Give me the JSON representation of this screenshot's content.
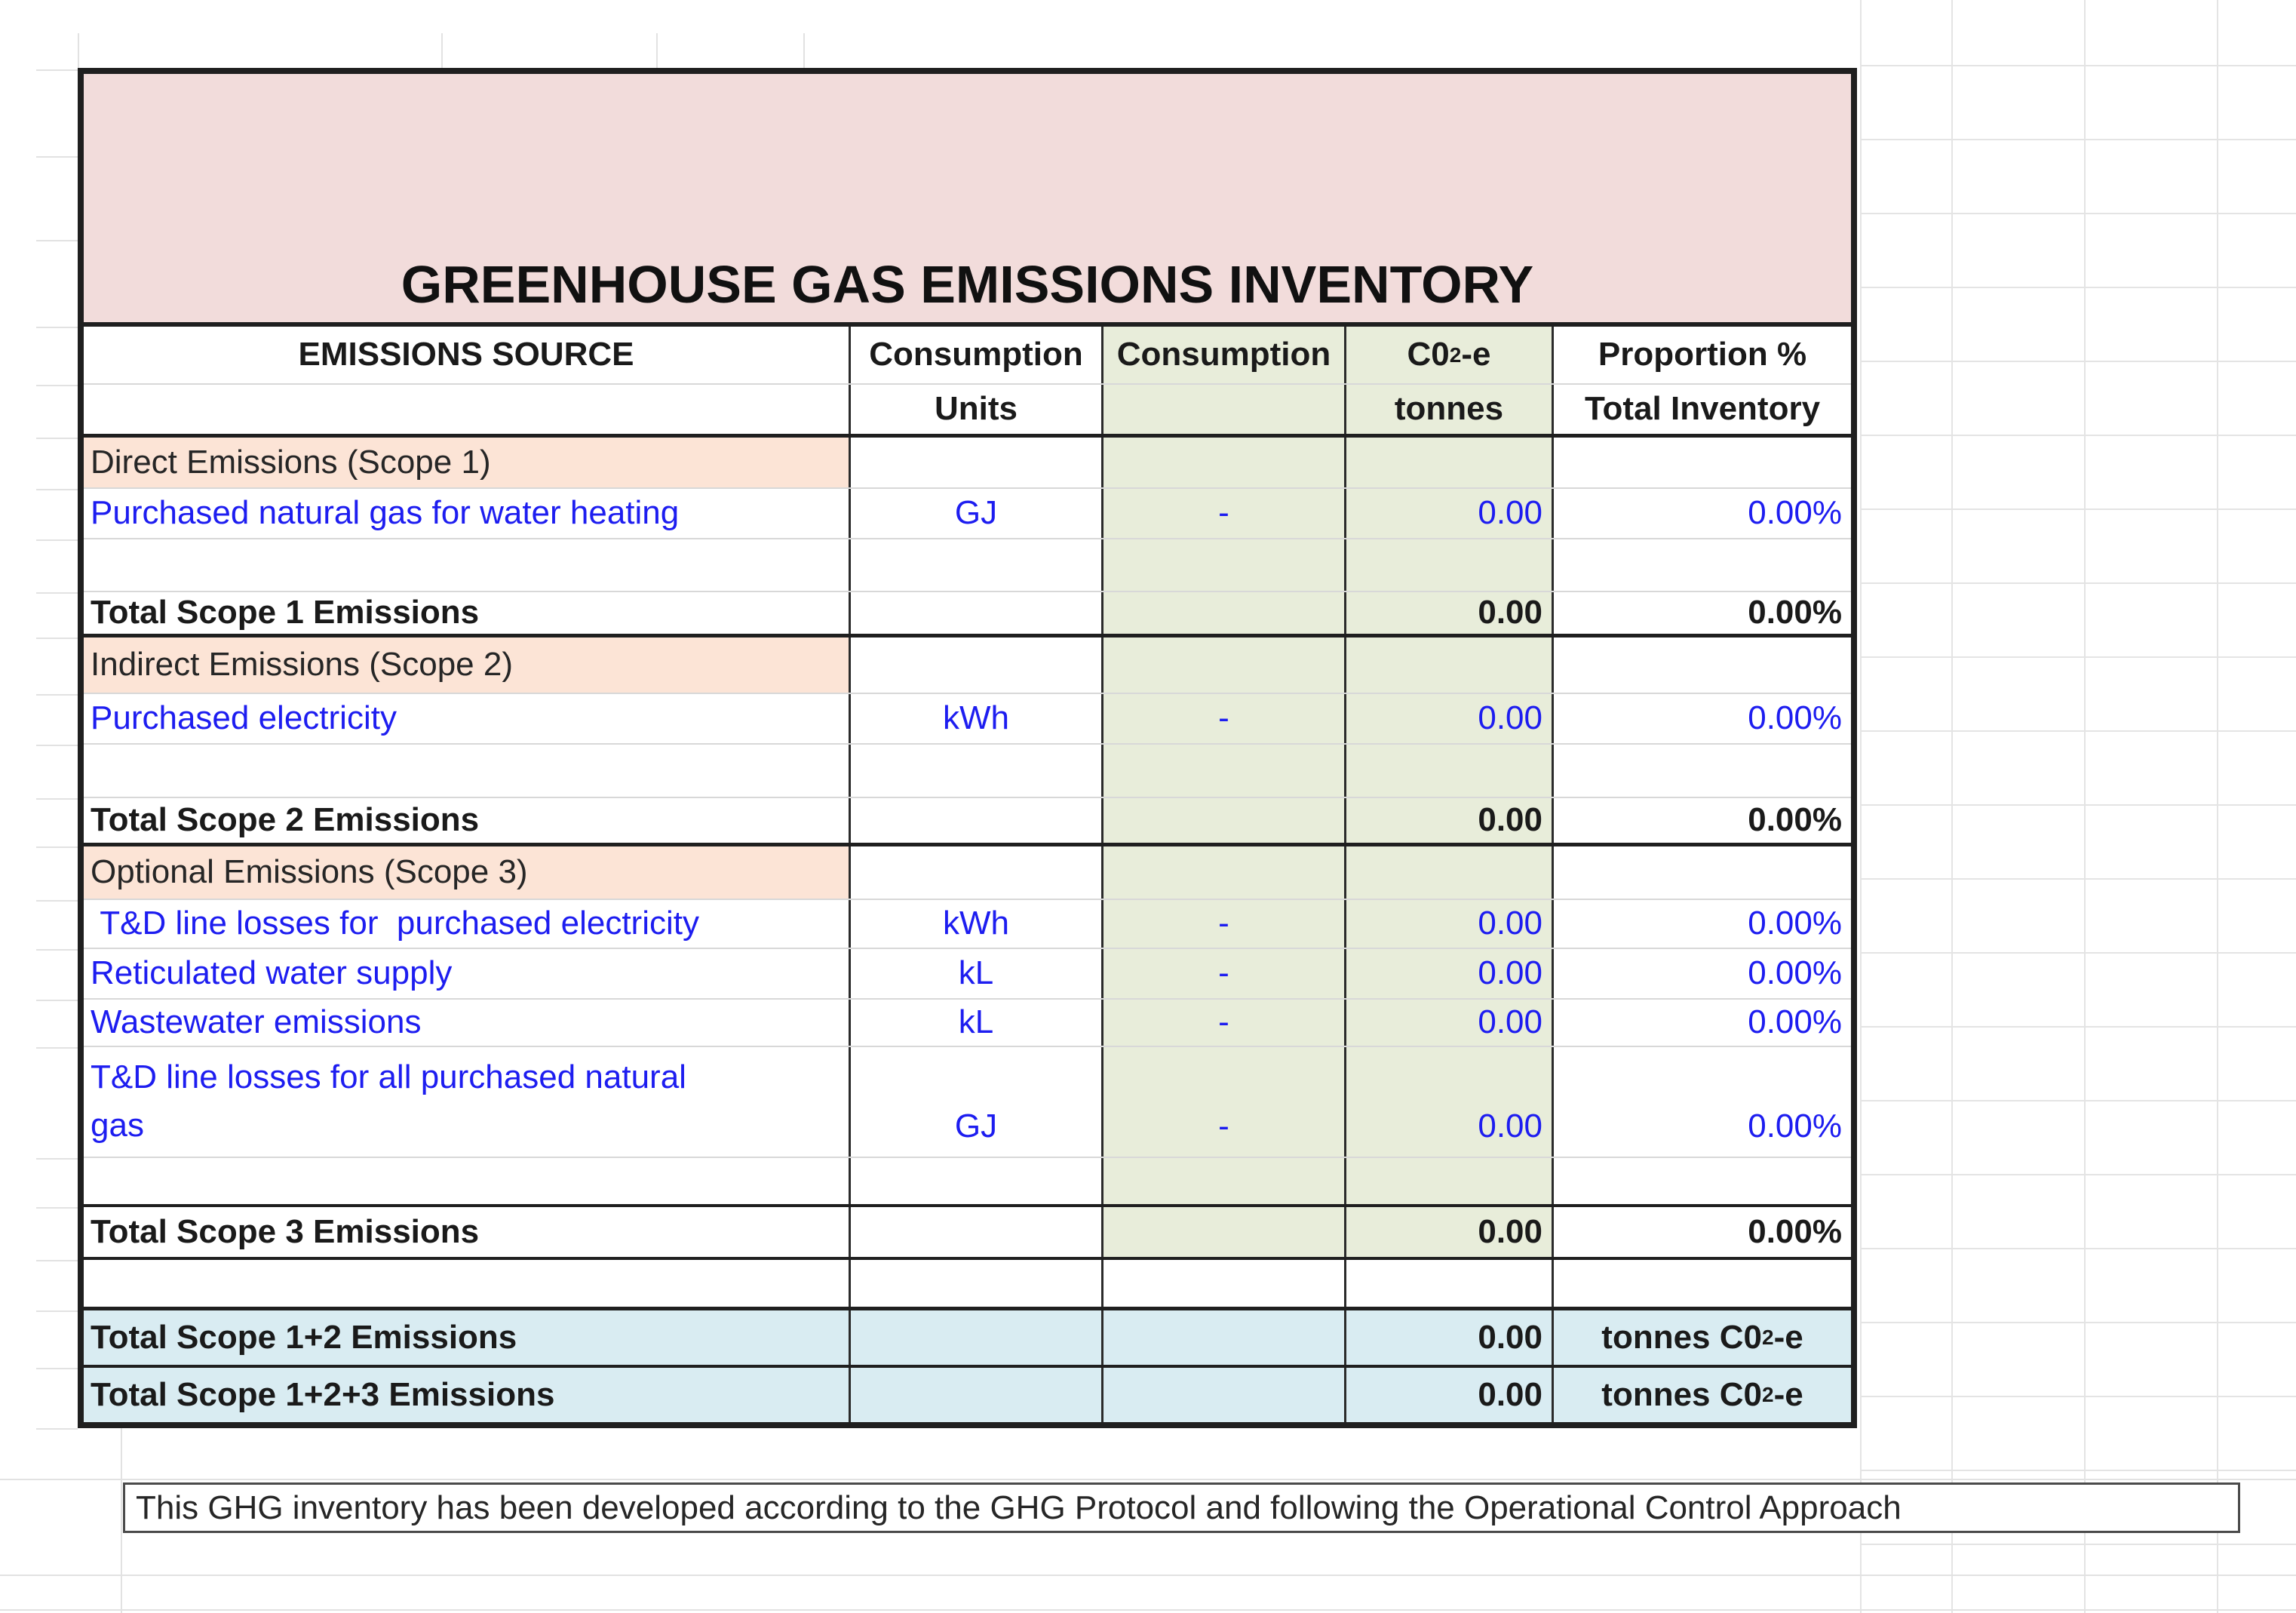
{
  "title": "GREENHOUSE GAS EMISSIONS INVENTORY",
  "columns": {
    "source": "EMISSIONS SOURCE",
    "units_line1": "Consumption",
    "units_line2": "Units",
    "consumption": "Consumption",
    "co2e_prefix": "C0",
    "co2e_sub": "2",
    "co2e_suffix": "-e",
    "co2e_line2": "tonnes",
    "proportion_line1": "Proportion %",
    "proportion_line2": "Total Inventory"
  },
  "scope1": {
    "header": "Direct Emissions (Scope 1)",
    "rows": [
      {
        "label": "Purchased natural gas for water heating",
        "units": "GJ",
        "consumption": "-",
        "co2e": "0.00",
        "proportion": "0.00%"
      }
    ],
    "total_label": "Total Scope 1 Emissions",
    "total_co2e": "0.00",
    "total_proportion": "0.00%"
  },
  "scope2": {
    "header": "Indirect Emissions (Scope 2)",
    "rows": [
      {
        "label": "Purchased electricity",
        "units": "kWh",
        "consumption": "-",
        "co2e": "0.00",
        "proportion": "0.00%"
      }
    ],
    "total_label": "Total Scope 2 Emissions",
    "total_co2e": "0.00",
    "total_proportion": "0.00%"
  },
  "scope3": {
    "header": "Optional Emissions (Scope 3)",
    "rows": [
      {
        "label": " T&D line losses for  purchased electricity",
        "units": "kWh",
        "consumption": "-",
        "co2e": "0.00",
        "proportion": "0.00%"
      },
      {
        "label": "Reticulated water supply",
        "units": "kL",
        "consumption": "-",
        "co2e": "0.00",
        "proportion": "0.00%"
      },
      {
        "label": "Wastewater emissions",
        "units": "kL",
        "consumption": "-",
        "co2e": "0.00",
        "proportion": "0.00%"
      },
      {
        "label": "T&D line losses for all purchased natural\ngas",
        "units": "GJ",
        "consumption": "-",
        "co2e": "0.00",
        "proportion": "0.00%"
      }
    ],
    "total_label": "Total Scope 3 Emissions",
    "total_co2e": "0.00",
    "total_proportion": "0.00%"
  },
  "grand_totals": [
    {
      "label": "Total Scope 1+2 Emissions",
      "co2e": "0.00",
      "unit_prefix": "tonnes C0",
      "unit_sub": "2",
      "unit_suffix": "-e"
    },
    {
      "label": "Total Scope 1+2+3 Emissions",
      "co2e": "0.00",
      "unit_prefix": "tonnes C0",
      "unit_sub": "2",
      "unit_suffix": "-e"
    }
  ],
  "footer_note": "This GHG inventory has been developed according to the GHG Protocol and following the Operational Control Approach",
  "colors": {
    "title_bg": "#f2dcdb",
    "scope_header_bg": "#fce4d6",
    "calc_column_bg": "#e8edda",
    "grand_total_bg": "#d9ecf2",
    "entry_text": "#1d1df0",
    "border": "#1f1f1f"
  }
}
